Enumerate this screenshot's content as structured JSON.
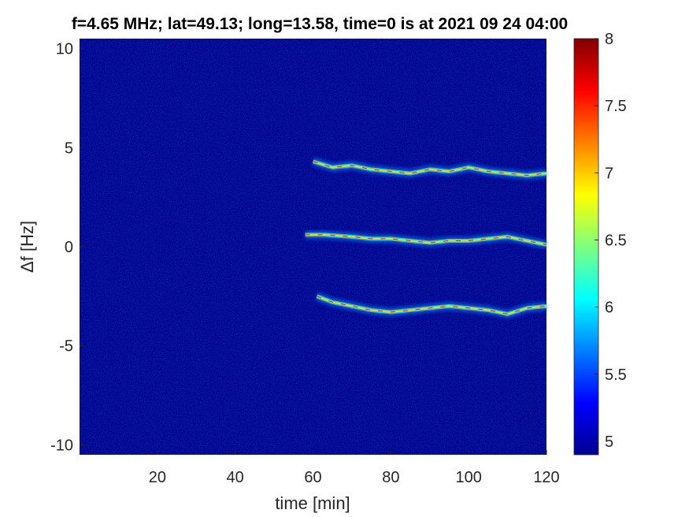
{
  "chart_data": {
    "type": "heatmap",
    "title": "f=4.65 MHz;  lat=49.13; long=13.58, time=0 is at 2021 09 24 04:00",
    "xlabel": "time [min]",
    "ylabel": "Δf [Hz]",
    "xlim": [
      0,
      120
    ],
    "ylim": [
      -10.5,
      10.5
    ],
    "xticks": [
      20,
      40,
      60,
      80,
      100,
      120
    ],
    "yticks": [
      -10,
      -5,
      0,
      5,
      10
    ],
    "colormap": "jet",
    "colorbar": {
      "range": [
        4.9,
        8
      ],
      "ticks": [
        5,
        5.5,
        6,
        6.5,
        7,
        7.5,
        8
      ],
      "position": "right"
    },
    "background_color": "#00048f",
    "traces": [
      {
        "t": [
          60,
          65,
          70,
          75,
          80,
          85,
          90,
          95,
          100,
          105,
          110,
          115,
          120
        ],
        "df": [
          4.3,
          4.0,
          4.1,
          3.9,
          3.8,
          3.7,
          3.9,
          3.8,
          4.0,
          3.8,
          3.7,
          3.6,
          3.7
        ]
      },
      {
        "t": [
          58,
          63,
          70,
          75,
          80,
          85,
          90,
          95,
          100,
          105,
          110,
          115,
          120
        ],
        "df": [
          0.6,
          0.6,
          0.5,
          0.4,
          0.4,
          0.3,
          0.2,
          0.3,
          0.3,
          0.4,
          0.5,
          0.3,
          0.1
        ]
      },
      {
        "t": [
          61,
          65,
          70,
          75,
          80,
          85,
          90,
          95,
          100,
          105,
          110,
          115,
          120
        ],
        "df": [
          -2.5,
          -2.8,
          -3.0,
          -3.2,
          -3.3,
          -3.2,
          -3.1,
          -3.0,
          -3.1,
          -3.2,
          -3.4,
          -3.1,
          -3.0
        ]
      }
    ],
    "grid": false
  }
}
